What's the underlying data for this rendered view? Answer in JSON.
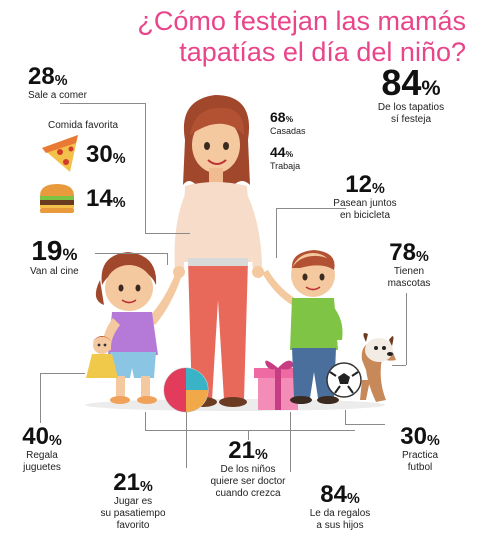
{
  "title": {
    "line1": "¿Cómo festejan las mamás",
    "line2": "tapatías el día del niño?"
  },
  "colors": {
    "accent": "#e8458a",
    "text": "#111111",
    "leader": "#8a8a8a"
  },
  "stats": {
    "sale_comer": {
      "value": "28",
      "pct": "%",
      "label": "Sale a comer"
    },
    "comida_favorita": {
      "label": "Comida favorita"
    },
    "pizza": {
      "value": "30",
      "pct": "%",
      "icon": "pizza-icon"
    },
    "hamburguesa": {
      "value": "14",
      "pct": "%",
      "icon": "burger-icon"
    },
    "cine": {
      "value": "19",
      "pct": "%",
      "label": "Van al cine"
    },
    "casadas": {
      "value": "68",
      "pct": "%",
      "label": "Casadas"
    },
    "trabaja": {
      "value": "44",
      "pct": "%",
      "label": "Trabaja"
    },
    "festeja": {
      "value": "84",
      "pct": "%",
      "label1": "De los tapatios",
      "label2": "sí festeja"
    },
    "bicicleta": {
      "value": "12",
      "pct": "%",
      "label1": "Pasean juntos",
      "label2": "en bicicleta"
    },
    "mascotas": {
      "value": "78",
      "pct": "%",
      "label1": "Tienen",
      "label2": "mascotas"
    },
    "juguetes": {
      "value": "40",
      "pct": "%",
      "label1": "Regala",
      "label2": "juguetes"
    },
    "futbol": {
      "value": "30",
      "pct": "%",
      "label1": "Practica",
      "label2": "futbol"
    },
    "doctor": {
      "value": "21",
      "pct": "%",
      "label1": "De los niños",
      "label2": "quiere ser doctor",
      "label3": "cuando crezca"
    },
    "jugar": {
      "value": "21",
      "pct": "%",
      "label1": "Jugar es",
      "label2": "su pasatiempo",
      "label3": "favorito"
    },
    "regalos": {
      "value": "84",
      "pct": "%",
      "label1": "Le da regalos",
      "label2": "a sus hijos"
    }
  }
}
